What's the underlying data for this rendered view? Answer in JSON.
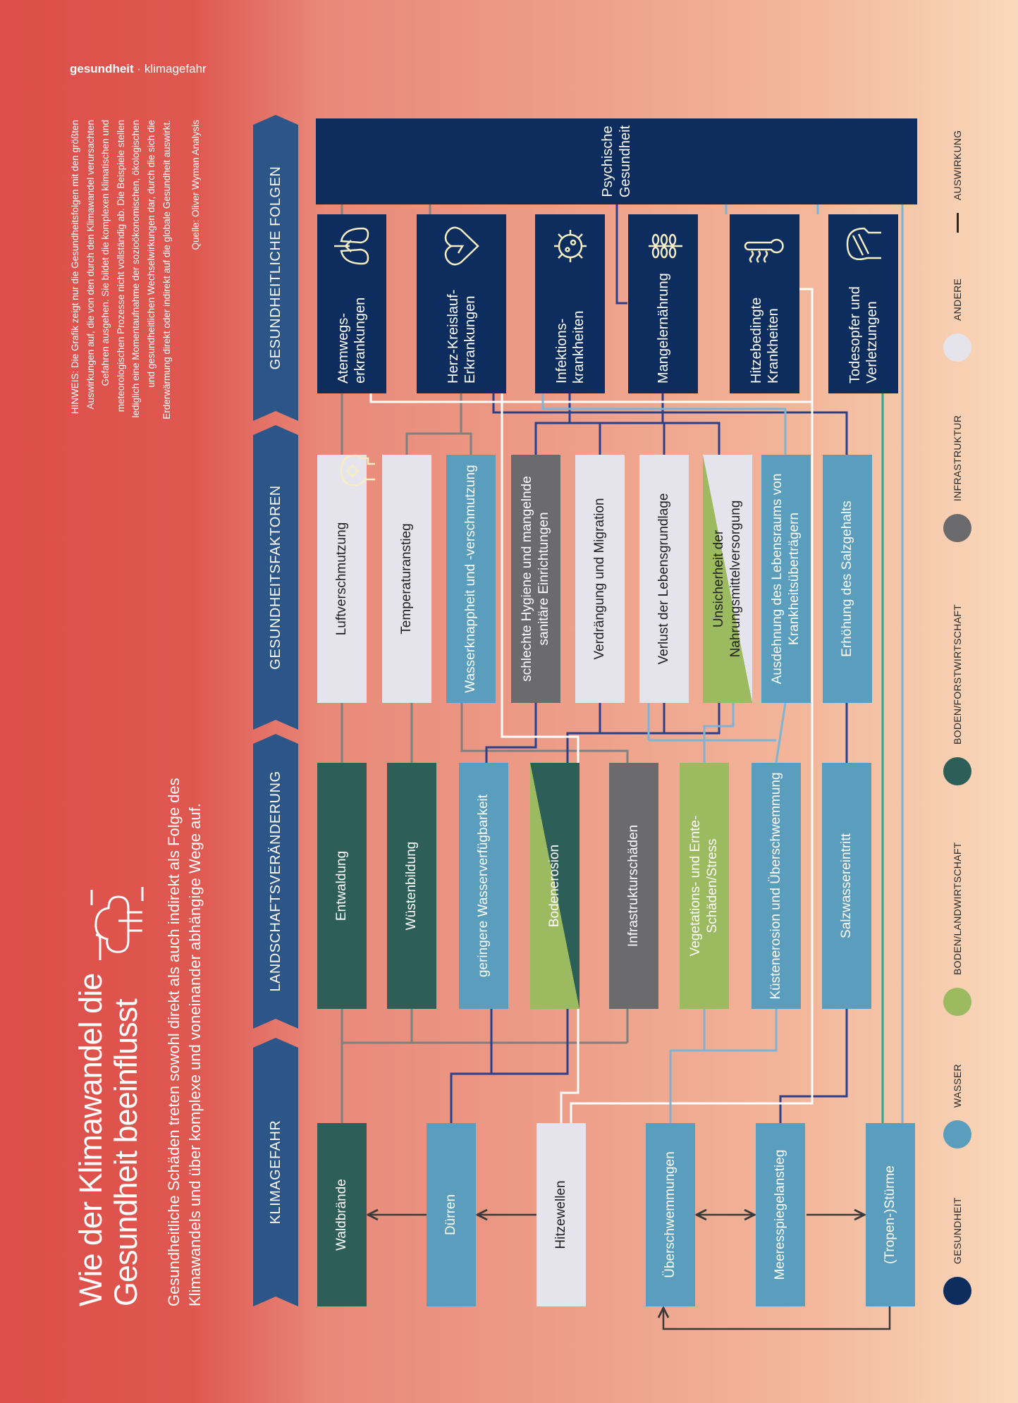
{
  "header": {
    "section": "gesundheit",
    "separator": "·",
    "topic": "klimagefahr"
  },
  "title": "Wie der Klimawandel die Gesundheit beeinflusst",
  "subtitle": "Gesundheitliche Schäden treten sowohl direkt als auch indirekt als Folge des Klimawandels und über komplexe und voneinander abhängige Wege auf.",
  "note": "HINWEIS: Die Grafik zeigt nur die Gesundheitsfolgen mit den größten Auswirkungen auf, die von den durch den Klimawandel verursachten Gefahren ausgehen. Sie bildet die komplexen klimatischen und meteorologischen Prozesse nicht vollständig ab. Die Beispiele stellen lediglich eine Momentaufnahme der sozioökonomischen, ökologischen und gesundheitlichen Wechselwirkungen dar, durch die sich die Erderwärmung direkt oder indirekt auf die globale Gesundheit auswirkt.",
  "source": "Quelle: Oliver Wyman Analysis",
  "columns": [
    "KLIMAGEFAHR",
    "LANDSCHAFTSVERÄNDERUNG",
    "GESUNDHEITSFAKTOREN",
    "GESUNDHEITLICHE FOLGEN"
  ],
  "hazards": [
    "Waldbrände",
    "Dürren",
    "Hitzewellen",
    "Überschwemmungen",
    "Meeresspiegelanstieg",
    "(Tropen-)Stürme"
  ],
  "landscape": [
    "Entwaldung",
    "Wüstenbildung",
    "geringere Wasserverfügbarkeit",
    "Bodenerosion",
    "Infrastrukturschäden",
    "Vegetations- und Ernte-Schäden/Stress",
    "Küstenerosion und Überschwemmung",
    "Salzwassereintritt"
  ],
  "factors": [
    "Luftverschmutzung",
    "Temperaturanstieg",
    "Wasserknappheit und -verschmutzung",
    "schlechte Hygiene und mangelnde sanitäre Einrichtungen",
    "Verdrängung und Migration",
    "Verlust der Lebensgrundlage",
    "Unsicherheit der Nahrungsmittelversorgung",
    "Ausdehnung des Lebensraums von Krankheitsüberträgern",
    "Erhöhung des Salzgehalts"
  ],
  "consequences": [
    "Atemwegs- erkrankungen",
    "Herz-Kreislauf- Erkrankungen",
    "Infektions- krankheiten",
    "Mangelernährung",
    "Hitzebedingte Krankheiten",
    "Todesopfer und Verletzungen"
  ],
  "mental_health": "Psychische Gesundheit",
  "legend": [
    "GESUNDHEIT",
    "WASSER",
    "BODEN/LANDWIRTSCHAFT",
    "BODEN/FORSTWIRTSCHAFT",
    "INFRASTRUKTUR",
    "ANDERE",
    "AUSWIRKUNG"
  ]
}
